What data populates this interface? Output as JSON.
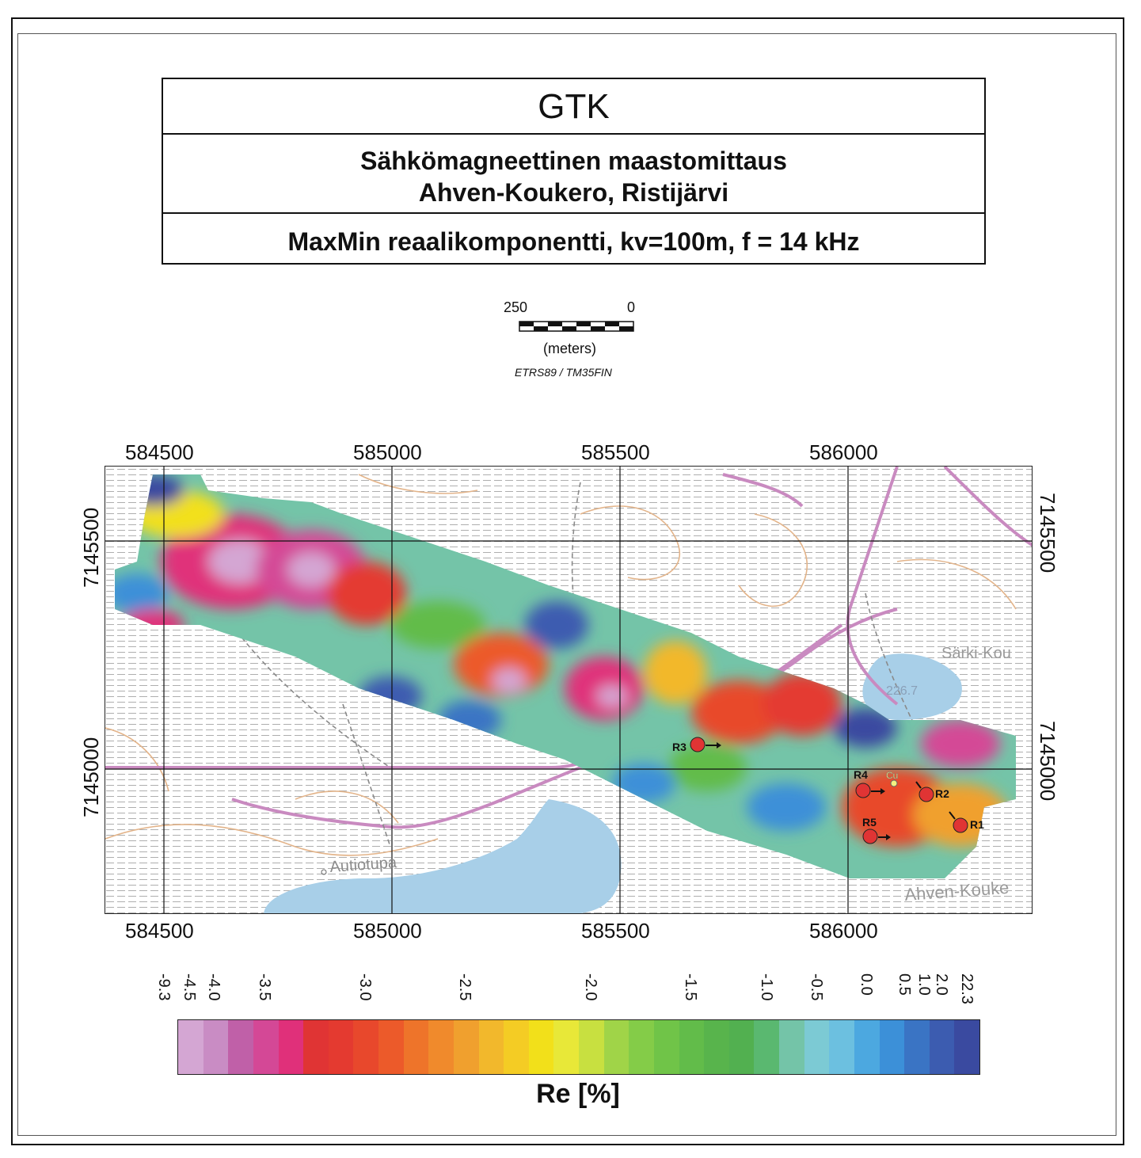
{
  "title": {
    "org": "GTK",
    "survey_line1": "Sähkömagneettinen maastomittaus",
    "survey_line2": "Ahven-Koukero, Ristijärvi",
    "method": "MaxMin reaalikomponentti, kv=100m, f = 14 kHz"
  },
  "scale": {
    "left_label": "250",
    "right_label": "0",
    "unit": "(meters)",
    "crs": "ETRS89 / TM35FIN"
  },
  "grid": {
    "x_labels": [
      "584500",
      "585000",
      "585500",
      "586000"
    ],
    "y_labels": [
      "7145500",
      "7145000"
    ]
  },
  "places": {
    "hut": "Autiotupa",
    "lake": "Särki-Kou",
    "lake_elev": "226.7",
    "area": "Ahven-Kouke"
  },
  "markers": [
    {
      "id": "R1",
      "label": "R1"
    },
    {
      "id": "R2",
      "label": "R2"
    },
    {
      "id": "R3",
      "label": "R3"
    },
    {
      "id": "R4",
      "label": "R4"
    },
    {
      "id": "R5",
      "label": "R5"
    }
  ],
  "cu_label": "Cu",
  "legend": {
    "title": "Re [%]",
    "ticks": [
      "-9.3",
      "-4.5",
      "-4.0",
      "-3.5",
      "-3.0",
      "-2.5",
      "-2.0",
      "-1.5",
      "-1.0",
      "-0.5",
      "0.0",
      "0.5",
      "1.0",
      "2.0",
      "22.3"
    ],
    "colors": [
      "#d4a6d3",
      "#c98cc4",
      "#c060a8",
      "#d44896",
      "#e0307a",
      "#e03434",
      "#e43a30",
      "#e8482c",
      "#ec5a2a",
      "#ee742a",
      "#f08a2c",
      "#f0a02e",
      "#f2b82c",
      "#f4cc24",
      "#f2e01a",
      "#e8e838",
      "#c8e040",
      "#a0d448",
      "#84cc48",
      "#70c448",
      "#62bc4a",
      "#58b44c",
      "#52b050",
      "#5ab870",
      "#74c4a8",
      "#7ccad4",
      "#6cc0e0",
      "#4ca8e0",
      "#3c90d8",
      "#3a74c4",
      "#3c5cb0",
      "#3a4aa0"
    ]
  }
}
